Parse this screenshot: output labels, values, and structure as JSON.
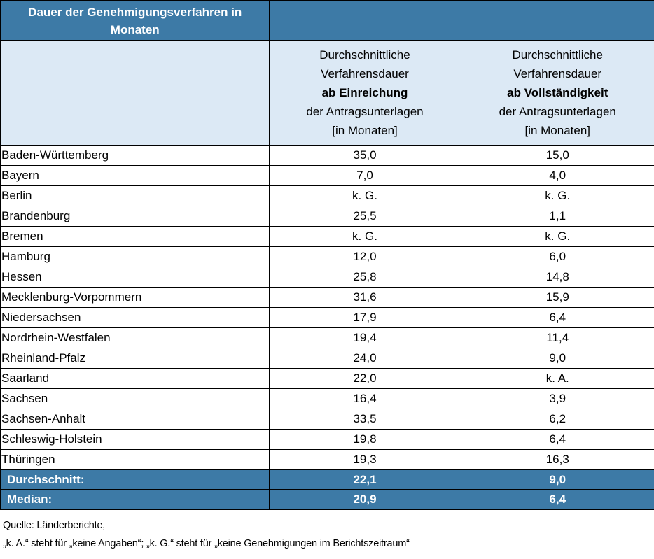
{
  "title": "Dauer der Genehmigungsverfahren in Monaten",
  "columns": [
    {
      "lines": [
        "Durchschnittliche",
        "Verfahrensdauer",
        "ab Einreichung",
        "der Antragsunterlagen",
        "[in Monaten]"
      ]
    },
    {
      "lines": [
        "Durchschnittliche",
        "Verfahrensdauer",
        "ab Vollständigkeit",
        "der Antragsunterlagen",
        "[in Monaten]"
      ]
    }
  ],
  "rows": [
    {
      "state": "Baden-Württemberg",
      "ab_einreichung": "35,0",
      "ab_vollstaendigkeit": "15,0"
    },
    {
      "state": "Bayern",
      "ab_einreichung": "7,0",
      "ab_vollstaendigkeit": "4,0"
    },
    {
      "state": "Berlin",
      "ab_einreichung": "k. G.",
      "ab_vollstaendigkeit": "k. G."
    },
    {
      "state": "Brandenburg",
      "ab_einreichung": "25,5",
      "ab_vollstaendigkeit": "1,1"
    },
    {
      "state": "Bremen",
      "ab_einreichung": "k. G.",
      "ab_vollstaendigkeit": "k. G."
    },
    {
      "state": "Hamburg",
      "ab_einreichung": "12,0",
      "ab_vollstaendigkeit": "6,0"
    },
    {
      "state": "Hessen",
      "ab_einreichung": "25,8",
      "ab_vollstaendigkeit": "14,8"
    },
    {
      "state": "Mecklenburg-Vorpommern",
      "ab_einreichung": "31,6",
      "ab_vollstaendigkeit": "15,9"
    },
    {
      "state": "Niedersachsen",
      "ab_einreichung": "17,9",
      "ab_vollstaendigkeit": "6,4"
    },
    {
      "state": "Nordrhein-Westfalen",
      "ab_einreichung": "19,4",
      "ab_vollstaendigkeit": "11,4"
    },
    {
      "state": "Rheinland-Pfalz",
      "ab_einreichung": "24,0",
      "ab_vollstaendigkeit": "9,0"
    },
    {
      "state": "Saarland",
      "ab_einreichung": "22,0",
      "ab_vollstaendigkeit": "k. A."
    },
    {
      "state": "Sachsen",
      "ab_einreichung": "16,4",
      "ab_vollstaendigkeit": "3,9"
    },
    {
      "state": "Sachsen-Anhalt",
      "ab_einreichung": "33,5",
      "ab_vollstaendigkeit": "6,2"
    },
    {
      "state": "Schleswig-Holstein",
      "ab_einreichung": "19,8",
      "ab_vollstaendigkeit": "6,4"
    },
    {
      "state": "Thüringen",
      "ab_einreichung": "19,3",
      "ab_vollstaendigkeit": "16,3"
    }
  ],
  "summary": [
    {
      "label": "Durchschnitt:",
      "ab_einreichung": "22,1",
      "ab_vollstaendigkeit": "9,0"
    },
    {
      "label": "Median:",
      "ab_einreichung": "20,9",
      "ab_vollstaendigkeit": "6,4"
    }
  ],
  "footnotes": [
    "Quelle: Länderberichte,",
    "„k. A.“ steht für „keine Angaben“; „k. G.“ steht für „keine Genehmigungen im Berichtszeitraum“"
  ],
  "colors": {
    "header_dark_blue": "#3D7AA6",
    "header_light_blue": "#DCE9F5",
    "border_black": "#000000",
    "header_text_white": "#FFFFFF",
    "body_text_black": "#000000"
  }
}
